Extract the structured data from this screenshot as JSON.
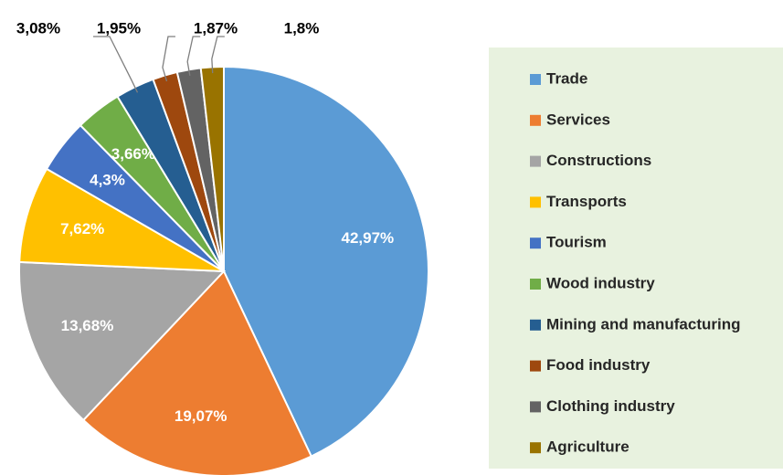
{
  "chart_data": {
    "type": "pie",
    "categories": [
      "Trade",
      "Services",
      "Constructions",
      "Transports",
      "Tourism",
      "Wood industry",
      "Mining and manufacturing",
      "Food industry",
      "Clothing industry",
      "Agriculture"
    ],
    "values": [
      42.97,
      19.07,
      13.68,
      7.62,
      4.3,
      3.66,
      3.08,
      1.95,
      1.87,
      1.8
    ],
    "value_labels": [
      "42,97%",
      "19,07%",
      "13,68%",
      "7,62%",
      "4,3%",
      "3,66%",
      "3,08%",
      "1,95%",
      "1,87%",
      "1,8%"
    ],
    "colors": [
      "#5b9bd5",
      "#ed7d31",
      "#a5a5a5",
      "#ffc000",
      "#4472c4",
      "#70ad47",
      "#255e91",
      "#9e480e",
      "#636363",
      "#997300"
    ],
    "legend": "right"
  }
}
